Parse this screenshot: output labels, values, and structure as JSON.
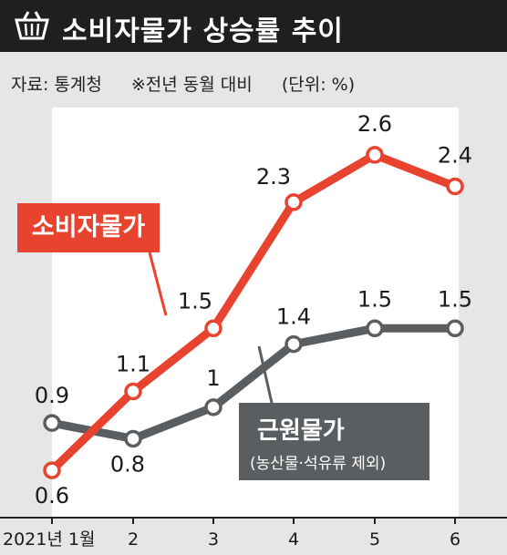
{
  "header": {
    "title": "소비자물가 상승률 추이",
    "icon": "basket-icon"
  },
  "meta": {
    "source": "자료: 통계청",
    "note": "※전년 동월 대비",
    "unit": "(단위: %)"
  },
  "colors": {
    "consumer": "#e8432f",
    "core": "#5a5e60",
    "header_bg": "#1f1f1f",
    "background": "#e6e6e6"
  },
  "tags": {
    "consumer": "소비자물가",
    "core_main": "근원물가",
    "core_sub": "(농산물·석유류 제외)"
  },
  "chart_data": {
    "type": "line",
    "categories": [
      "2021년 1월",
      "2",
      "3",
      "4",
      "5",
      "6"
    ],
    "series": [
      {
        "name": "소비자물가",
        "values": [
          0.6,
          1.1,
          1.5,
          2.3,
          2.6,
          2.4
        ],
        "labels": [
          "0.6",
          "1.1",
          "1.5",
          "2.3",
          "2.6",
          "2.4"
        ]
      },
      {
        "name": "근원물가",
        "values": [
          0.9,
          0.8,
          1.0,
          1.4,
          1.5,
          1.5
        ],
        "labels": [
          "0.9",
          "0.8",
          "1",
          "1.4",
          "1.5",
          "1.5"
        ]
      }
    ],
    "ylim": [
      0.3,
      2.9
    ],
    "grid": false
  }
}
